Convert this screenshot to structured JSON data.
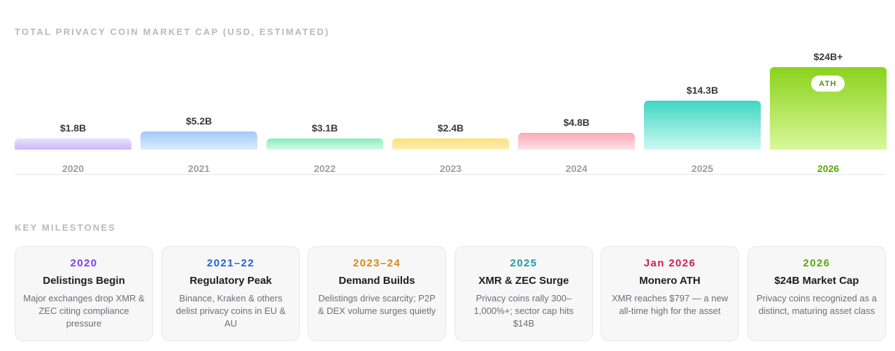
{
  "chart_title": "TOTAL PRIVACY COIN MARKET CAP (USD, ESTIMATED)",
  "chart_data": {
    "type": "bar",
    "title": "TOTAL PRIVACY COIN MARKET CAP (USD, ESTIMATED)",
    "unit": "USD billions",
    "categories": [
      "2020",
      "2021",
      "2022",
      "2023",
      "2024",
      "2025",
      "2026"
    ],
    "values": [
      1.8,
      5.2,
      3.1,
      2.4,
      4.8,
      14.3,
      24
    ],
    "value_labels": [
      "$1.8B",
      "$5.2B",
      "$3.1B",
      "$2.4B",
      "$4.8B",
      "$14.3B",
      "$24B+"
    ],
    "highlight_category": "2026",
    "highlight_badge": "ATH",
    "grid": false,
    "legend": "none",
    "colors": [
      [
        "#eae2fd",
        "#cab9f8"
      ],
      [
        "#a3c9fc",
        "#dcebff"
      ],
      [
        "#8bebc0",
        "#d3f9e7"
      ],
      [
        "#fbdf78",
        "#fdf0b6"
      ],
      [
        "#fda9b4",
        "#ffe1e5"
      ],
      [
        "#3fd5c4",
        "#cbfaf0"
      ],
      [
        "#8ad21d",
        "#d9f89a"
      ]
    ]
  },
  "milestones_title": "KEY MILESTONES",
  "milestones": [
    {
      "year": "2020",
      "color": "#7b3fe4",
      "title": "Delistings Begin",
      "desc": "Major exchanges drop XMR & ZEC citing compliance pressure"
    },
    {
      "year": "2021–22",
      "color": "#2463d8",
      "title": "Regulatory Peak",
      "desc": "Binance, Kraken & others delist privacy coins in EU & AU"
    },
    {
      "year": "2023–24",
      "color": "#d98712",
      "title": "Demand Builds",
      "desc": "Delistings drive scarcity; P2P & DEX volume surges quietly"
    },
    {
      "year": "2025",
      "color": "#1c9aa8",
      "title": "XMR & ZEC Surge",
      "desc": "Privacy coins rally 300–1,000%+; sector cap hits $14B"
    },
    {
      "year": "Jan 2026",
      "color": "#d61c4e",
      "title": "Monero ATH",
      "desc": "XMR reaches $797 — a new all-time high for the asset"
    },
    {
      "year": "2026",
      "color": "#5aa70f",
      "title": "$24B Market Cap",
      "desc": "Privacy coins recognized as a distinct, maturing asset class"
    }
  ]
}
